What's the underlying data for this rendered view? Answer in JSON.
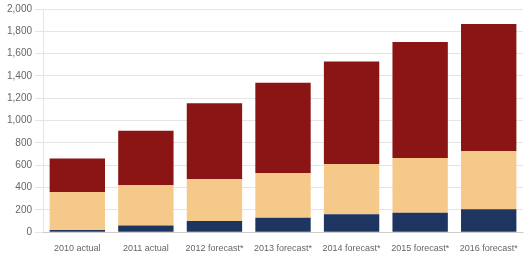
{
  "chart_data": {
    "type": "bar",
    "stacked": true,
    "grid": true,
    "categories": [
      "2010 actual",
      "2011 actual",
      "2012 forecast*",
      "2013 forecast*",
      "2014 forecast*",
      "2015 forecast*",
      "2016 forecast*"
    ],
    "series": [
      {
        "color": "#1e3461",
        "values": [
          20,
          60,
          100,
          130,
          160,
          175,
          205
        ]
      },
      {
        "color": "#f5c98a",
        "values": [
          340,
          360,
          375,
          400,
          450,
          490,
          520
        ]
      },
      {
        "color": "#8b1515",
        "values": [
          300,
          490,
          680,
          810,
          920,
          1040,
          1140
        ]
      }
    ],
    "ylim": [
      0,
      2000
    ],
    "yticks": [
      0,
      200,
      400,
      600,
      800,
      {
        "value": 1000,
        "label": "1,000"
      },
      {
        "value": 1200,
        "label": "1,200"
      },
      {
        "value": 1400,
        "label": "1,400"
      },
      {
        "value": 1600,
        "label": "1,600"
      },
      {
        "value": 1800,
        "label": "1,800"
      },
      {
        "value": 2000,
        "label": "2,000"
      }
    ]
  }
}
